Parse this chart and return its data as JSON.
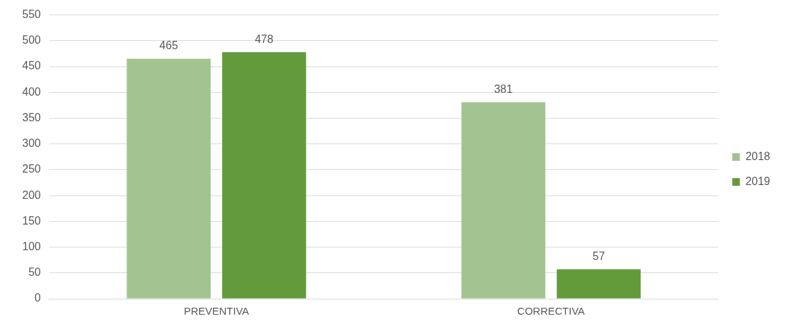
{
  "chart_data": {
    "type": "bar",
    "categories": [
      "PREVENTIVA",
      "CORRECTIVA"
    ],
    "series": [
      {
        "name": "2018",
        "color": "#a2c490",
        "values": [
          465,
          381
        ]
      },
      {
        "name": "2019",
        "color": "#639a3c",
        "values": [
          478,
          57
        ]
      }
    ],
    "ylim": [
      0,
      550
    ],
    "yticks": [
      0,
      50,
      100,
      150,
      200,
      250,
      300,
      350,
      400,
      450,
      500,
      550
    ],
    "grid": "y",
    "legend": "right",
    "data_labels": true
  }
}
